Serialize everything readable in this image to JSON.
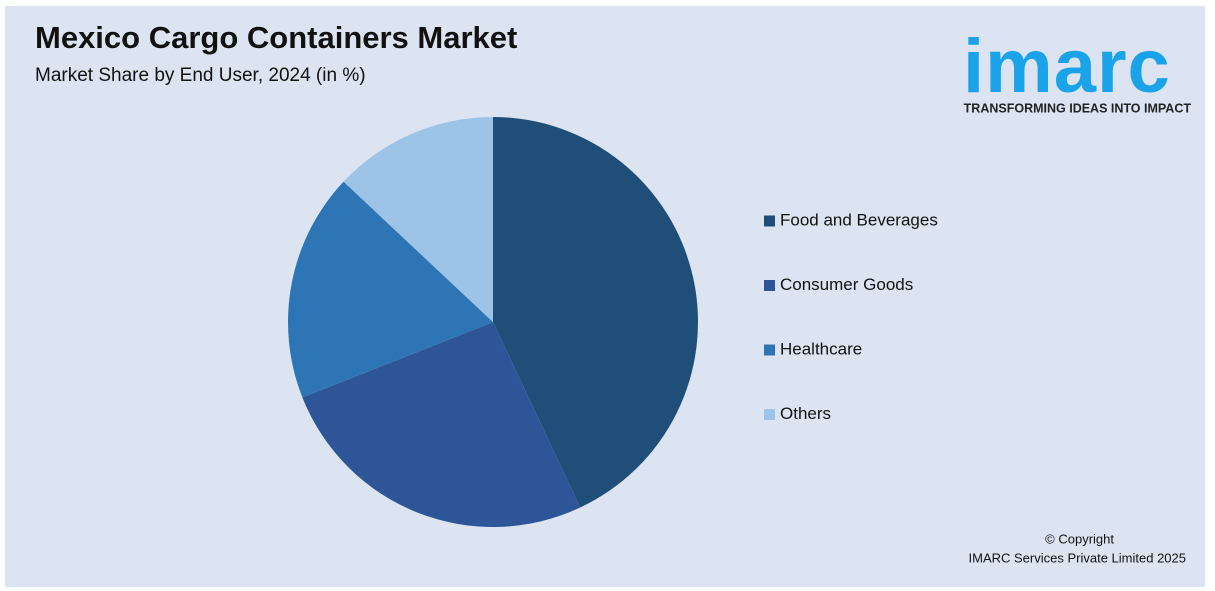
{
  "chart_data": {
    "type": "pie",
    "title": "Mexico Cargo Containers Market",
    "subtitle": "Market Share by End User, 2024 (in %)",
    "categories": [
      "Food and Beverages",
      "Consumer Goods",
      "Healthcare",
      "Others"
    ],
    "values": [
      43,
      26,
      18,
      13
    ],
    "colors": [
      "#1f4e79",
      "#2e5597",
      "#2e75b6",
      "#9dc3e6"
    ]
  },
  "brand": {
    "logo": "imarc",
    "tagline": "TRANSFORMING IDEAS INTO IMPACT"
  },
  "footer": {
    "copyright": "© Copyright",
    "company": "IMARC Services Private Limited 2025"
  }
}
